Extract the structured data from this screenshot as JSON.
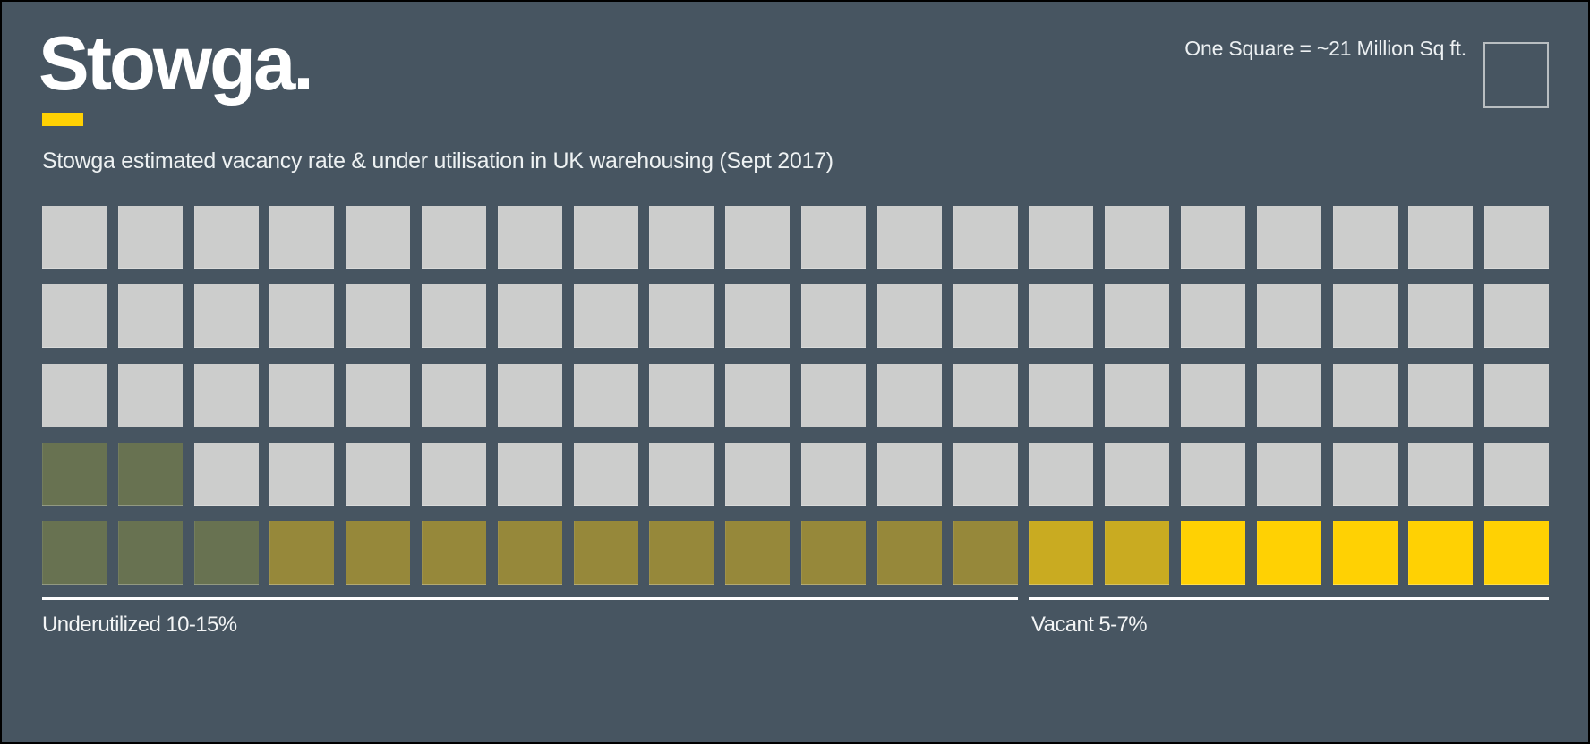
{
  "header": {
    "logo_text": "Stowga.",
    "logo_underline_color": "#FFD103",
    "legend_label": "One Square = ~21 Million Sq ft."
  },
  "title": "Stowga estimated vacancy rate & under utilisation in UK warehousing (Sept 2017)",
  "footer": {
    "underutilized_label": "Underutilized 10-15%",
    "vacant_label": "Vacant 5-7%"
  },
  "colors": {
    "background": "#475561",
    "frame_border": "#000000",
    "text": "#F3F5F6",
    "rule_line": "#FDFDFD",
    "legend_square_border": "#B9BEC1",
    "accent_yellow": "#FFD103"
  },
  "chart_data": {
    "type": "heatmap",
    "subtype": "waffle unit chart",
    "title": "Stowga estimated vacancy rate & under utilisation in UK warehousing (Sept 2017)",
    "unit_definition": "One Square = ~21 Million Sq ft.",
    "grid": {
      "columns": 20,
      "rows": 5,
      "total_squares": 100
    },
    "legend_position": "top-right",
    "palette": {
      "gray": "#CCCDCC",
      "olive": "#687251",
      "gold": "#96883A",
      "gold_bright": "#C9AB21",
      "yellow": "#FFD103"
    },
    "series": [
      {
        "name": "light gray squares",
        "color_key": "gray",
        "count": 78
      },
      {
        "name": "olive green squares",
        "color_key": "olive",
        "count": 5
      },
      {
        "name": "dark gold squares",
        "color_key": "gold",
        "count": 10
      },
      {
        "name": "bright gold squares",
        "color_key": "gold_bright",
        "count": 2
      },
      {
        "name": "yellow squares",
        "color_key": "yellow",
        "count": 5
      }
    ],
    "bottom_spans": [
      {
        "label": "Underutilized 10-15%",
        "columns": "1-13"
      },
      {
        "label": "Vacant 5-7%",
        "columns": "14-20"
      }
    ],
    "cells": [
      [
        "gray",
        "gray",
        "gray",
        "gray",
        "gray",
        "gray",
        "gray",
        "gray",
        "gray",
        "gray",
        "gray",
        "gray",
        "gray",
        "gray",
        "gray",
        "gray",
        "gray",
        "gray",
        "gray",
        "gray"
      ],
      [
        "gray",
        "gray",
        "gray",
        "gray",
        "gray",
        "gray",
        "gray",
        "gray",
        "gray",
        "gray",
        "gray",
        "gray",
        "gray",
        "gray",
        "gray",
        "gray",
        "gray",
        "gray",
        "gray",
        "gray"
      ],
      [
        "gray",
        "gray",
        "gray",
        "gray",
        "gray",
        "gray",
        "gray",
        "gray",
        "gray",
        "gray",
        "gray",
        "gray",
        "gray",
        "gray",
        "gray",
        "gray",
        "gray",
        "gray",
        "gray",
        "gray"
      ],
      [
        "olive",
        "olive",
        "gray",
        "gray",
        "gray",
        "gray",
        "gray",
        "gray",
        "gray",
        "gray",
        "gray",
        "gray",
        "gray",
        "gray",
        "gray",
        "gray",
        "gray",
        "gray",
        "gray",
        "gray"
      ],
      [
        "olive",
        "olive",
        "olive",
        "gold",
        "gold",
        "gold",
        "gold",
        "gold",
        "gold",
        "gold",
        "gold",
        "gold",
        "gold",
        "gold_bright",
        "gold_bright",
        "yellow",
        "yellow",
        "yellow",
        "yellow",
        "yellow"
      ]
    ]
  }
}
